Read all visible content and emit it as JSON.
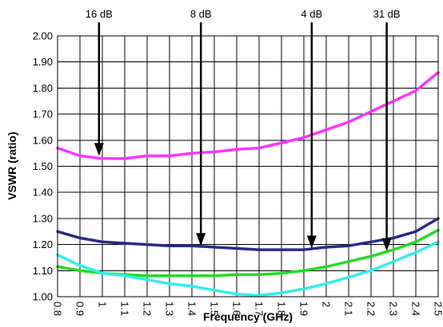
{
  "chart_data": {
    "type": "line",
    "title": "",
    "xlabel": "Frequency (GHz)",
    "ylabel": "VSWR (ratio)",
    "xlim": [
      0.8,
      2.5
    ],
    "ylim": [
      1.0,
      2.0
    ],
    "x_ticks": [
      "0.8",
      "0.9",
      "1",
      "1.1",
      "1.2",
      "1.3",
      "1.4",
      "1.5",
      "1.6",
      "1.7",
      "1.8",
      "1.9",
      "2",
      "2.1",
      "2.2",
      "2.3",
      "2.4",
      "2.5"
    ],
    "y_ticks": [
      "1.00",
      "1.10",
      "1.20",
      "1.30",
      "1.40",
      "1.50",
      "1.60",
      "1.70",
      "1.80",
      "1.90",
      "2.00"
    ],
    "grid": true,
    "legend": "none",
    "series": [
      {
        "color": "#ff33ff",
        "x": [
          0.8,
          0.9,
          1.0,
          1.1,
          1.2,
          1.3,
          1.4,
          1.5,
          1.6,
          1.7,
          1.8,
          1.9,
          2.0,
          2.1,
          2.2,
          2.3,
          2.4,
          2.5
        ],
        "y": [
          1.57,
          1.54,
          1.53,
          1.53,
          1.54,
          1.54,
          1.55,
          1.555,
          1.565,
          1.57,
          1.59,
          1.61,
          1.64,
          1.67,
          1.71,
          1.75,
          1.79,
          1.86
        ]
      },
      {
        "color": "#2a2a8c",
        "x": [
          0.8,
          0.9,
          1.0,
          1.1,
          1.2,
          1.3,
          1.4,
          1.5,
          1.6,
          1.7,
          1.8,
          1.9,
          2.0,
          2.1,
          2.2,
          2.3,
          2.4,
          2.5
        ],
        "y": [
          1.25,
          1.225,
          1.21,
          1.205,
          1.2,
          1.195,
          1.195,
          1.19,
          1.185,
          1.18,
          1.18,
          1.18,
          1.19,
          1.195,
          1.21,
          1.225,
          1.25,
          1.3
        ]
      },
      {
        "color": "#22dd22",
        "x": [
          0.8,
          0.9,
          1.0,
          1.1,
          1.2,
          1.3,
          1.4,
          1.5,
          1.6,
          1.7,
          1.8,
          1.9,
          2.0,
          2.1,
          2.2,
          2.3,
          2.4,
          2.5
        ],
        "y": [
          1.115,
          1.1,
          1.09,
          1.085,
          1.08,
          1.08,
          1.08,
          1.08,
          1.085,
          1.085,
          1.09,
          1.1,
          1.115,
          1.135,
          1.155,
          1.18,
          1.21,
          1.255
        ]
      },
      {
        "color": "#33eeee",
        "x": [
          0.8,
          0.9,
          1.0,
          1.1,
          1.2,
          1.3,
          1.4,
          1.5,
          1.6,
          1.7,
          1.8,
          1.9,
          2.0,
          2.1,
          2.2,
          2.3,
          2.4,
          2.5
        ],
        "y": [
          1.16,
          1.12,
          1.09,
          1.08,
          1.065,
          1.05,
          1.04,
          1.025,
          1.01,
          1.005,
          1.015,
          1.03,
          1.05,
          1.075,
          1.1,
          1.135,
          1.17,
          1.21
        ]
      }
    ],
    "annotations": [
      {
        "text": "16 dB",
        "x": 0.985,
        "y_head": 1.54
      },
      {
        "text": "8 dB",
        "x": 1.44,
        "y_head": 1.195
      },
      {
        "text": "4 dB",
        "x": 1.935,
        "y_head": 1.185
      },
      {
        "text": "31 dB",
        "x": 2.27,
        "y_head": 1.175
      }
    ]
  }
}
